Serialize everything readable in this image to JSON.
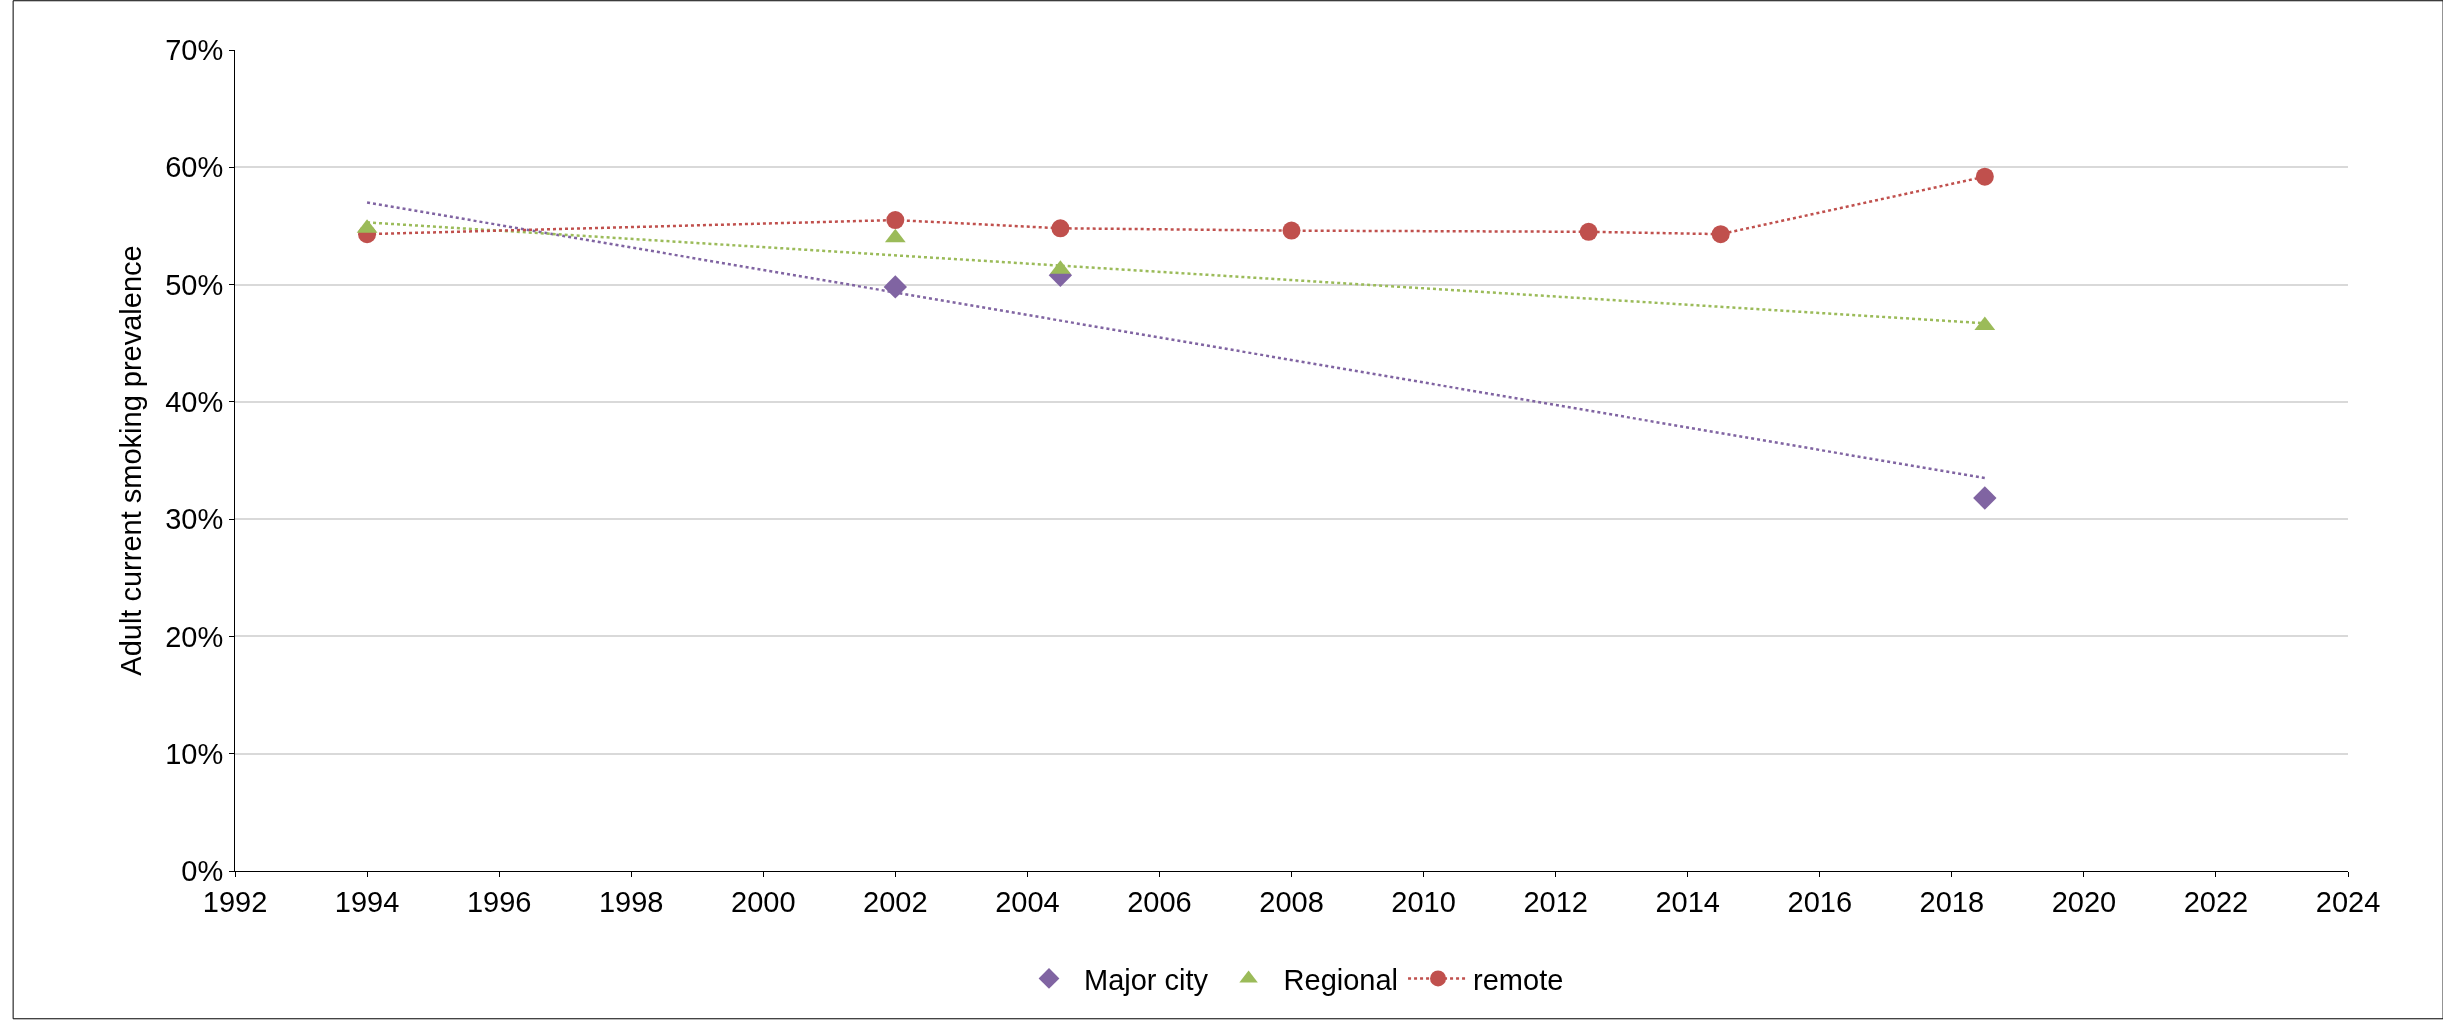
{
  "chart_data": {
    "type": "scatter",
    "ylabel": "Adult current smoking prevalence",
    "xlim": [
      1992,
      2024
    ],
    "xticks": [
      1992,
      1994,
      1996,
      1998,
      2000,
      2002,
      2004,
      2006,
      2008,
      2010,
      2012,
      2014,
      2016,
      2018,
      2020,
      2022,
      2024
    ],
    "ylim": [
      0,
      70
    ],
    "yticks": [
      {
        "value": 0,
        "label": "0%"
      },
      {
        "value": 10,
        "label": "10%"
      },
      {
        "value": 20,
        "label": "20%"
      },
      {
        "value": 30,
        "label": "30%"
      },
      {
        "value": 40,
        "label": "40%"
      },
      {
        "value": 50,
        "label": "50%"
      },
      {
        "value": 60,
        "label": "60%"
      },
      {
        "value": 70,
        "label": "70%"
      }
    ],
    "grid": "y",
    "legend": "bottom",
    "series": [
      {
        "name": "Major city",
        "marker": "diamond",
        "color": "#8064a2",
        "x": [
          2002,
          2004.5,
          2018.5
        ],
        "values": [
          49.8,
          50.8,
          31.8
        ]
      },
      {
        "name": "Regional",
        "marker": "triangle",
        "color": "#9bbb59",
        "x": [
          1994,
          2002,
          2004.5,
          2018.5
        ],
        "values": [
          54.8,
          54.0,
          51.3,
          46.5
        ]
      },
      {
        "name": "remote",
        "type": "line",
        "marker": "circle",
        "line_style": "dotted",
        "color": "#c0504d",
        "x": [
          1994,
          2002,
          2004.5,
          2008,
          2012.5,
          2014.5,
          2018.5
        ],
        "values": [
          54.3,
          55.5,
          54.8,
          54.6,
          54.5,
          54.3,
          59.2
        ]
      },
      {
        "type": "line",
        "marker": "none",
        "line_style": "dotted",
        "color": "#8064a2",
        "x": [
          1994,
          2018.5
        ],
        "values": [
          57.0,
          33.5
        ]
      },
      {
        "type": "line",
        "marker": "none",
        "line_style": "dotted",
        "color": "#9bbb59",
        "x": [
          1994,
          2018.5
        ],
        "values": [
          55.3,
          46.7
        ]
      }
    ]
  }
}
